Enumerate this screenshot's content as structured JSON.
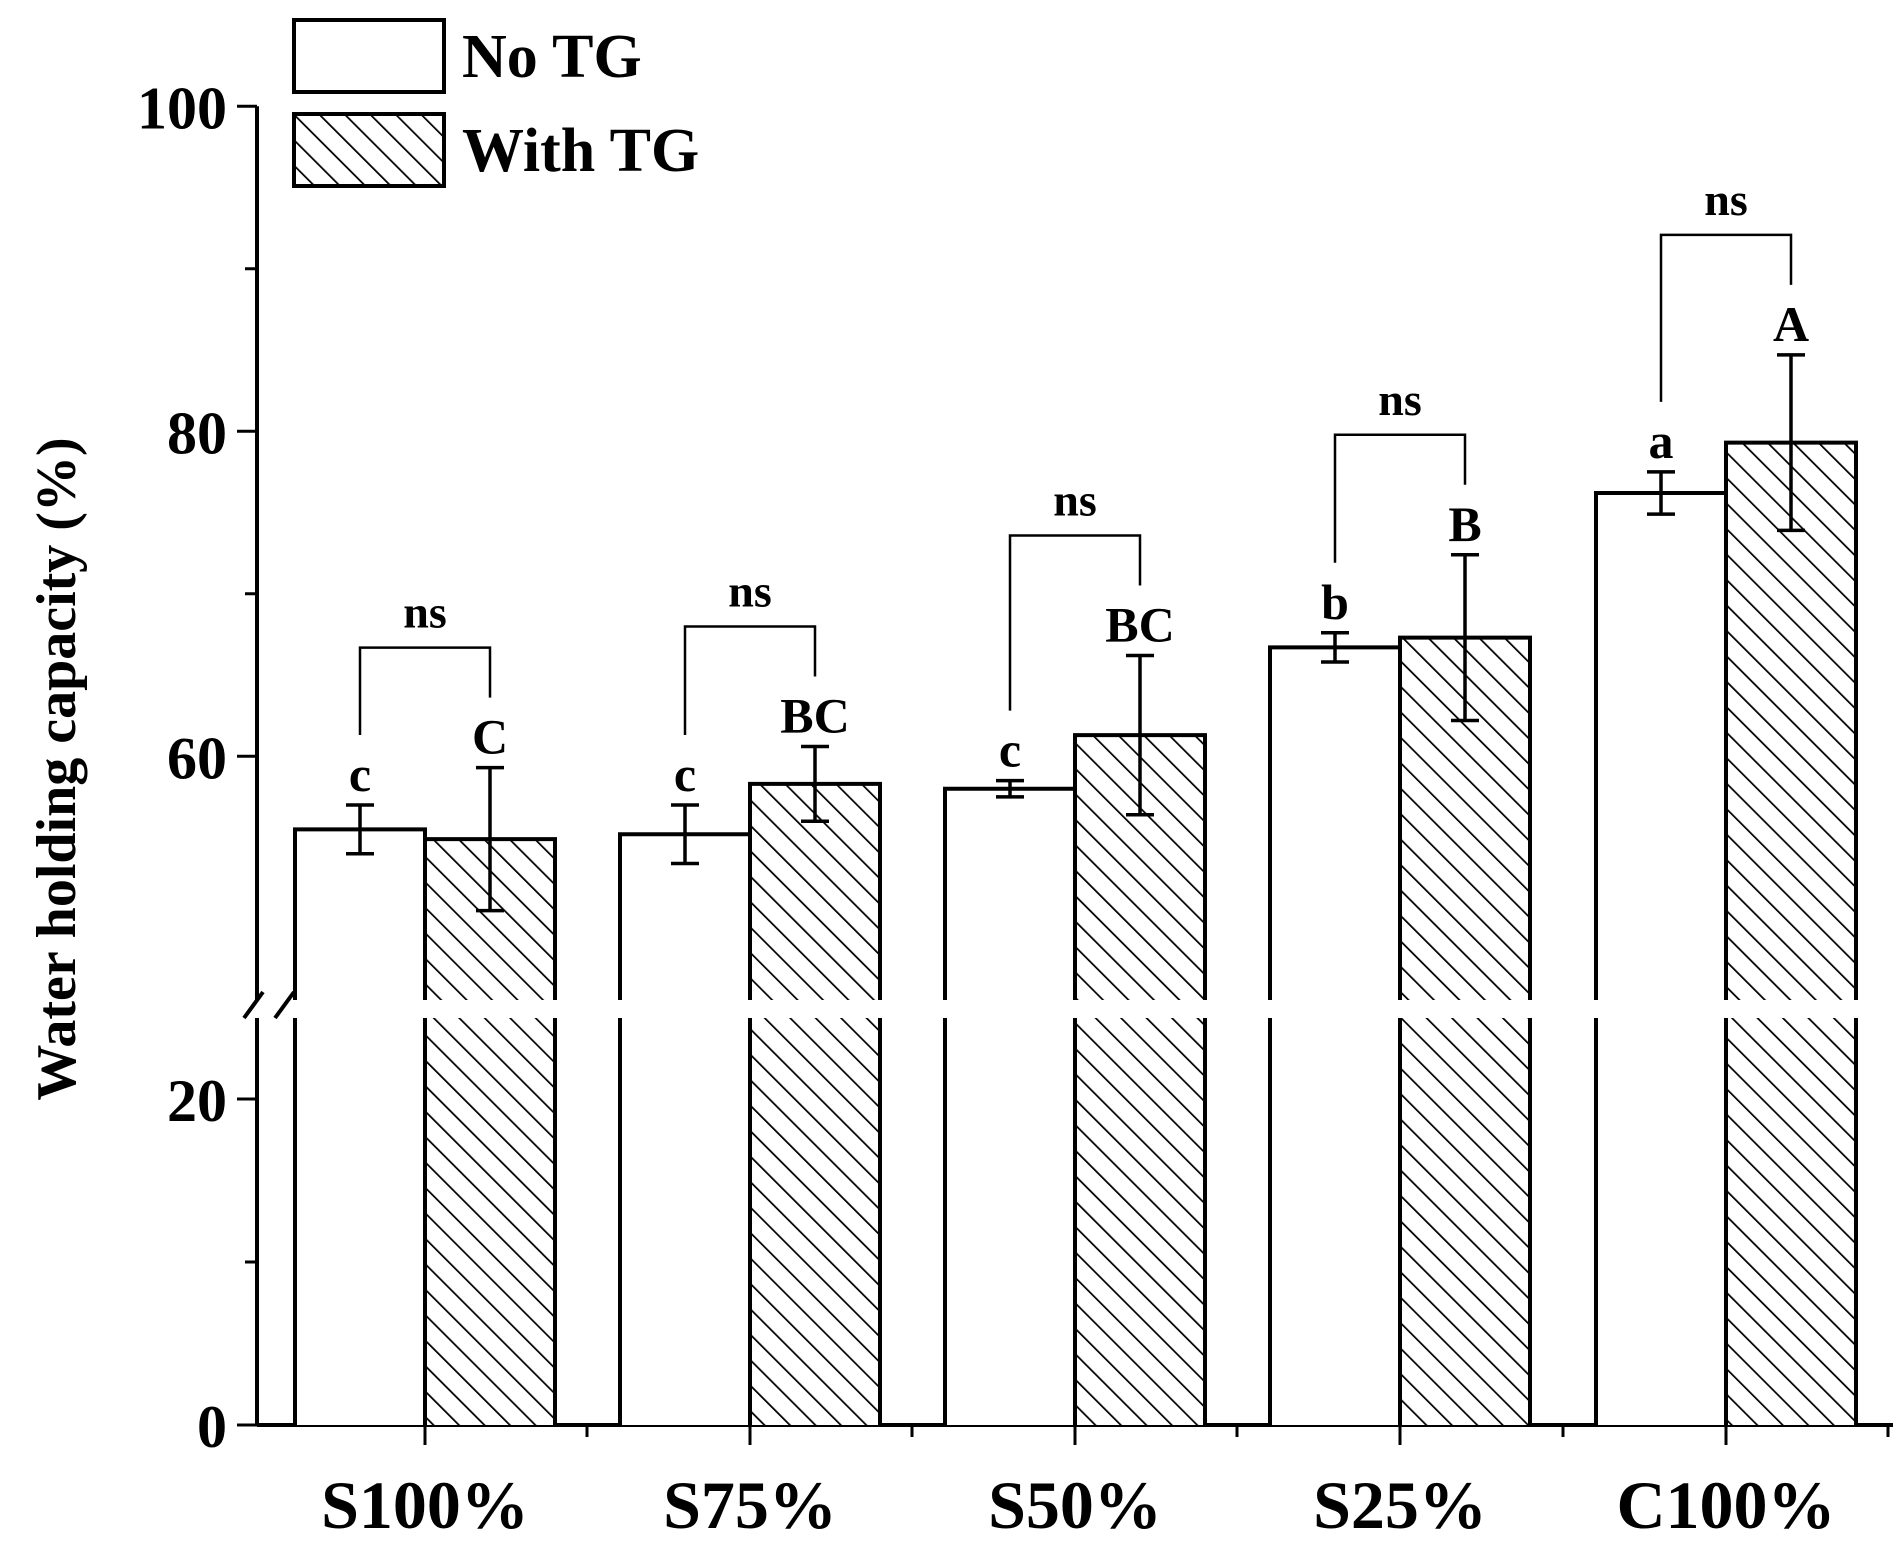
{
  "chart_data": {
    "type": "bar",
    "title": "",
    "xlabel": "",
    "ylabel": "Water holding capacity (%)",
    "categories": [
      "S100%",
      "S75%",
      "S50%",
      "S25%",
      "C100%"
    ],
    "y_axis_break": [
      24,
      45
    ],
    "ylim": [
      0,
      100
    ],
    "yticks": [
      "0",
      "20",
      "60",
      "80",
      "100"
    ],
    "legend_position": "top-left",
    "series": [
      {
        "name": "No TG",
        "pattern": "open",
        "values": [
          55.5,
          55.2,
          58.0,
          66.7,
          76.2
        ],
        "errors": [
          1.5,
          1.8,
          0.5,
          0.9,
          1.3
        ],
        "letters": [
          "c",
          "c",
          "c",
          "b",
          "a"
        ]
      },
      {
        "name": "With TG",
        "pattern": "hatched",
        "values": [
          54.9,
          58.3,
          61.3,
          67.3,
          79.3
        ],
        "errors": [
          4.4,
          2.3,
          4.9,
          5.1,
          5.4
        ],
        "letters": [
          "C",
          "BC",
          "BC",
          "B",
          "A"
        ]
      }
    ],
    "comparisons": [
      "ns",
      "ns",
      "ns",
      "ns",
      "ns"
    ],
    "colors": {
      "line": "#000000",
      "fill": "#ffffff"
    }
  }
}
